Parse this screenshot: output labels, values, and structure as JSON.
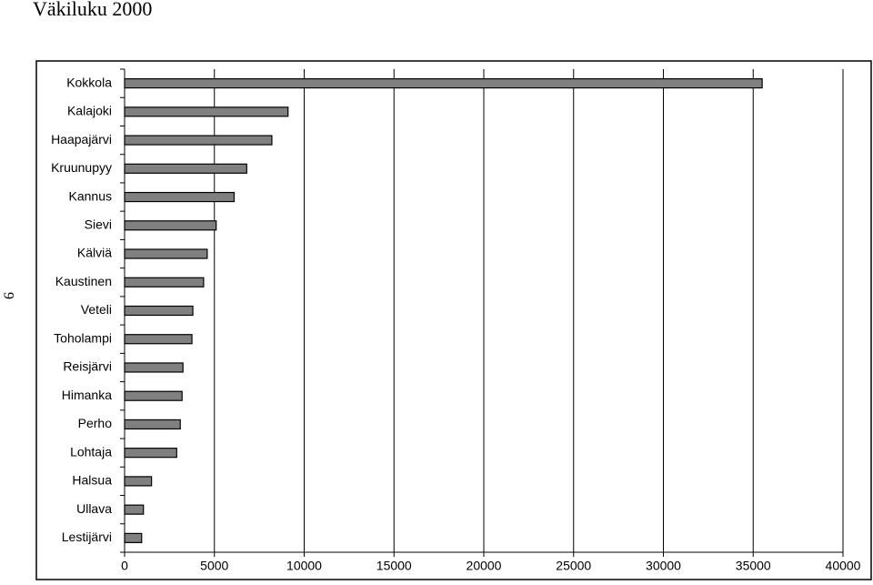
{
  "page_number": "9",
  "chart_data": {
    "type": "hbar",
    "title": "Väkiluku 2000",
    "categories": [
      "Kokkola",
      "Kalajoki",
      "Haapajärvi",
      "Kruunupyy",
      "Kannus",
      "Sievi",
      "Kälviä",
      "Kaustinen",
      "Veteli",
      "Toholampi",
      "Reisjärvi",
      "Himanka",
      "Perho",
      "Lohtaja",
      "Halsua",
      "Ullava",
      "Lestijärvi"
    ],
    "values": [
      35500,
      9100,
      8200,
      6800,
      6100,
      5100,
      4600,
      4400,
      3800,
      3750,
      3250,
      3200,
      3100,
      2900,
      1500,
      1050,
      950
    ],
    "color": "#808080",
    "xlim": [
      0,
      40000
    ],
    "xticks": [
      0,
      5000,
      10000,
      15000,
      20000,
      25000,
      30000,
      35000,
      40000
    ],
    "grid": true
  }
}
